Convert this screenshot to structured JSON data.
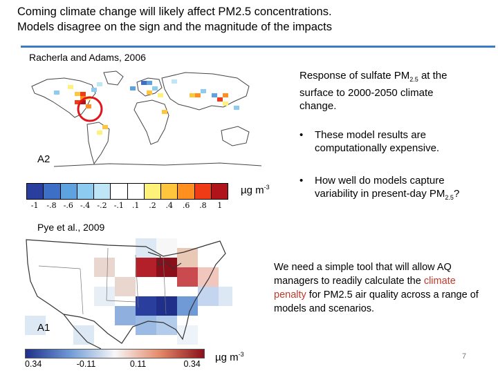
{
  "slide": {
    "title_line1": "Coming climate change will likely affect PM2.5 concentrations.",
    "title_line2": "Models disagree on the sign and the magnitude of the impacts",
    "page_number": "7"
  },
  "map_top": {
    "citation": "Racherla and Adams, 2006",
    "scenario": "A2",
    "units_base": "µg m",
    "units_exp": "-3",
    "colorbar_ticks": [
      "-1",
      "-.8",
      "-.6",
      "-.4",
      "-.2",
      "-.1",
      ".1",
      ".2",
      ".4",
      ".6",
      ".8",
      "1"
    ],
    "colorbar_colors": [
      "#2a3f9d",
      "#3d6fc7",
      "#5ea2e0",
      "#8dcbf0",
      "#bfe6f7",
      "#ffffff",
      "#ffffff",
      "#fff27a",
      "#ffc53d",
      "#ff8f1f",
      "#ef3b16",
      "#b0141a"
    ]
  },
  "map_bottom": {
    "citation": "Pye et al., 2009",
    "scenario": "A1",
    "units_base": "µg m",
    "units_exp": "-3",
    "colorbar_ticks": [
      "0.34",
      "-0.11",
      "0.11",
      "0.34"
    ],
    "colorbar_colors": [
      "#1f2f8a",
      "#6f9ad6",
      "#f7f7f7",
      "#e48a6a",
      "#8b0f1a"
    ]
  },
  "caption": {
    "pre": "Response  of sulfate PM",
    "sub": "2.5",
    "post": " at the surface to 2000-2050 climate change."
  },
  "bullets": {
    "b1": "These model results are computationally expensive.",
    "b2_pre": "How well do models capture variability in present-day PM",
    "b2_sub": "2.5",
    "b2_post": "?"
  },
  "conclusion": {
    "pre": "We  need a simple tool that will allow AQ managers to readily calculate the ",
    "highlight": "climate penalty",
    "post": " for PM2.5 air quality across a range of models and scenarios.",
    "highlight_color": "#c0392b"
  }
}
